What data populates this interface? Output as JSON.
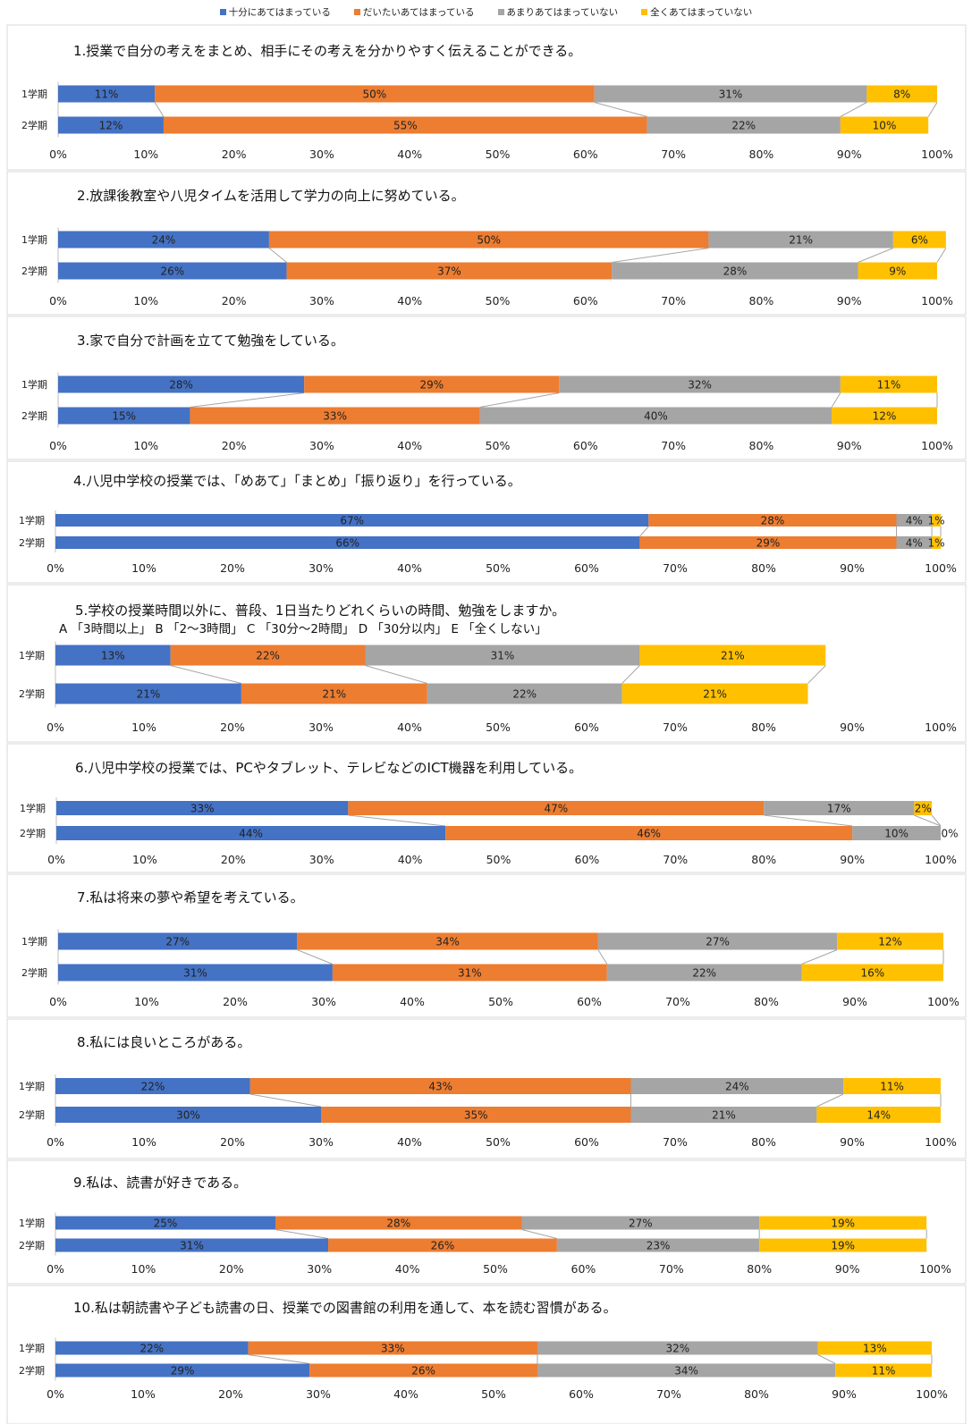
{
  "legend": [
    {
      "label": "十分にあてはまっている",
      "color": "#4472C4"
    },
    {
      "label": "だいたいあてはまっている",
      "color": "#ED7D31"
    },
    {
      "label": "あまりあてはまっていない",
      "color": "#A5A5A5"
    },
    {
      "label": "全くあてはまっていない",
      "color": "#FFC000"
    }
  ],
  "chart_data": [
    {
      "type": "bar",
      "orientation": "horizontal",
      "stacked": "percent",
      "title": "1.授業で自分の考えをまとめ、相手にその考えを分かりやすく伝えることができる。",
      "categories": [
        "1学期",
        "2学期"
      ],
      "series": [
        {
          "values": [
            11,
            12
          ],
          "labels": [
            "11%",
            "12%"
          ]
        },
        {
          "values": [
            50,
            55
          ],
          "labels": [
            "50%",
            "55%"
          ]
        },
        {
          "values": [
            31,
            22
          ],
          "labels": [
            "31%",
            "22%"
          ]
        },
        {
          "values": [
            8,
            10
          ],
          "labels": [
            "8%",
            "10%"
          ]
        }
      ],
      "xlim": [
        0,
        100
      ],
      "xticks": [
        "0%",
        "10%",
        "20%",
        "30%",
        "40%",
        "50%",
        "60%",
        "70%",
        "80%",
        "90%",
        "100%"
      ]
    },
    {
      "type": "bar",
      "orientation": "horizontal",
      "stacked": "percent",
      "title": "2.放課後教室や八児タイムを活用して学力の向上に努めている。",
      "categories": [
        "1学期",
        "2学期"
      ],
      "series": [
        {
          "values": [
            24,
            26
          ],
          "labels": [
            "24%",
            "26%"
          ]
        },
        {
          "values": [
            50,
            37
          ],
          "labels": [
            "50%",
            "37%"
          ]
        },
        {
          "values": [
            21,
            28
          ],
          "labels": [
            "21%",
            "28%"
          ]
        },
        {
          "values": [
            6,
            9
          ],
          "labels": [
            "6%",
            "9%"
          ]
        }
      ],
      "xlim": [
        0,
        100
      ],
      "xticks": [
        "0%",
        "10%",
        "20%",
        "30%",
        "40%",
        "50%",
        "60%",
        "70%",
        "80%",
        "90%",
        "100%"
      ]
    },
    {
      "type": "bar",
      "orientation": "horizontal",
      "stacked": "percent",
      "title": "3.家で自分で計画を立てて勉強をしている。",
      "categories": [
        "1学期",
        "2学期"
      ],
      "series": [
        {
          "values": [
            28,
            15
          ],
          "labels": [
            "28%",
            "15%"
          ]
        },
        {
          "values": [
            29,
            33
          ],
          "labels": [
            "29%",
            "33%"
          ]
        },
        {
          "values": [
            32,
            40
          ],
          "labels": [
            "32%",
            "40%"
          ]
        },
        {
          "values": [
            11,
            12
          ],
          "labels": [
            "11%",
            "12%"
          ]
        }
      ],
      "xlim": [
        0,
        100
      ],
      "xticks": [
        "0%",
        "10%",
        "20%",
        "30%",
        "40%",
        "50%",
        "60%",
        "70%",
        "80%",
        "90%",
        "100%"
      ]
    },
    {
      "type": "bar",
      "orientation": "horizontal",
      "stacked": "percent",
      "title": "4.八児中学校の授業では、「めあて」「まとめ」「振り返り」を行っている。",
      "categories": [
        "1学期",
        "2学期"
      ],
      "series": [
        {
          "values": [
            67,
            66
          ],
          "labels": [
            "67%",
            "66%"
          ]
        },
        {
          "values": [
            28,
            29
          ],
          "labels": [
            "28%",
            "29%"
          ]
        },
        {
          "values": [
            4,
            4
          ],
          "labels": [
            "4%",
            "4%"
          ]
        },
        {
          "values": [
            1,
            1
          ],
          "labels": [
            "1%",
            "1%"
          ]
        }
      ],
      "xlim": [
        0,
        100
      ],
      "xticks": [
        "0%",
        "10%",
        "20%",
        "30%",
        "40%",
        "50%",
        "60%",
        "70%",
        "80%",
        "90%",
        "100%"
      ]
    },
    {
      "type": "bar",
      "orientation": "horizontal",
      "stacked": "percent",
      "title": "5.学校の授業時間以外に、普段、1日当たりどれくらいの時間、勉強をしますか。",
      "subtitle": "A 「3時間以上」 B 「2～3時間」 C 「30分～2時間」 D 「30分以内」 E 「全くしない」",
      "categories": [
        "1学期",
        "2学期"
      ],
      "series": [
        {
          "values": [
            13,
            21
          ],
          "labels": [
            "13%",
            "21%"
          ]
        },
        {
          "values": [
            22,
            21
          ],
          "labels": [
            "22%",
            "21%"
          ]
        },
        {
          "values": [
            31,
            22
          ],
          "labels": [
            "31%",
            "22%"
          ]
        },
        {
          "values": [
            21,
            21
          ],
          "labels": [
            "21%",
            "21%"
          ]
        }
      ],
      "xlim": [
        0,
        100
      ],
      "xticks": [
        "0%",
        "10%",
        "20%",
        "30%",
        "40%",
        "50%",
        "60%",
        "70%",
        "80%",
        "90%",
        "100%"
      ]
    },
    {
      "type": "bar",
      "orientation": "horizontal",
      "stacked": "percent",
      "title": "6.八児中学校の授業では、PCやタブレット、テレビなどのICT機器を利用している。",
      "categories": [
        "1学期",
        "2学期"
      ],
      "series": [
        {
          "values": [
            33,
            44
          ],
          "labels": [
            "33%",
            "44%"
          ]
        },
        {
          "values": [
            47,
            46
          ],
          "labels": [
            "47%",
            "46%"
          ]
        },
        {
          "values": [
            17,
            10
          ],
          "labels": [
            "17%",
            "10%"
          ]
        },
        {
          "values": [
            2,
            0
          ],
          "labels": [
            "2%",
            "0%"
          ]
        }
      ],
      "xlim": [
        0,
        100
      ],
      "xticks": [
        "0%",
        "10%",
        "20%",
        "30%",
        "40%",
        "50%",
        "60%",
        "70%",
        "80%",
        "90%",
        "100%"
      ]
    },
    {
      "type": "bar",
      "orientation": "horizontal",
      "stacked": "percent",
      "title": "7.私は将来の夢や希望を考えている。",
      "categories": [
        "1学期",
        "2学期"
      ],
      "series": [
        {
          "values": [
            27,
            31
          ],
          "labels": [
            "27%",
            "31%"
          ]
        },
        {
          "values": [
            34,
            31
          ],
          "labels": [
            "34%",
            "31%"
          ]
        },
        {
          "values": [
            27,
            22
          ],
          "labels": [
            "27%",
            "22%"
          ]
        },
        {
          "values": [
            12,
            16
          ],
          "labels": [
            "12%",
            "16%"
          ]
        }
      ],
      "xlim": [
        0,
        100
      ],
      "xticks": [
        "0%",
        "10%",
        "20%",
        "30%",
        "40%",
        "50%",
        "60%",
        "70%",
        "80%",
        "90%",
        "100%"
      ]
    },
    {
      "type": "bar",
      "orientation": "horizontal",
      "stacked": "percent",
      "title": "8.私には良いところがある。",
      "categories": [
        "1学期",
        "2学期"
      ],
      "series": [
        {
          "values": [
            22,
            30
          ],
          "labels": [
            "22%",
            "30%"
          ]
        },
        {
          "values": [
            43,
            35
          ],
          "labels": [
            "43%",
            "35%"
          ]
        },
        {
          "values": [
            24,
            21
          ],
          "labels": [
            "24%",
            "21%"
          ]
        },
        {
          "values": [
            11,
            14
          ],
          "labels": [
            "11%",
            "14%"
          ]
        }
      ],
      "xlim": [
        0,
        100
      ],
      "xticks": [
        "0%",
        "10%",
        "20%",
        "30%",
        "40%",
        "50%",
        "60%",
        "70%",
        "80%",
        "90%",
        "100%"
      ]
    },
    {
      "type": "bar",
      "orientation": "horizontal",
      "stacked": "percent",
      "title": "9.私は、読書が好きである。",
      "categories": [
        "1学期",
        "2学期"
      ],
      "series": [
        {
          "values": [
            25,
            31
          ],
          "labels": [
            "25%",
            "31%"
          ]
        },
        {
          "values": [
            28,
            26
          ],
          "labels": [
            "28%",
            "26%"
          ]
        },
        {
          "values": [
            27,
            23
          ],
          "labels": [
            "27%",
            "23%"
          ]
        },
        {
          "values": [
            19,
            19
          ],
          "labels": [
            "19%",
            "19%"
          ]
        }
      ],
      "xlim": [
        0,
        100
      ],
      "xticks": [
        "0%",
        "10%",
        "20%",
        "30%",
        "40%",
        "50%",
        "60%",
        "70%",
        "80%",
        "90%",
        "100%"
      ]
    },
    {
      "type": "bar",
      "orientation": "horizontal",
      "stacked": "percent",
      "title": "10.私は朝読書や子ども読書の日、授業での図書館の利用を通して、本を読む習慣がある。",
      "categories": [
        "1学期",
        "2学期"
      ],
      "series": [
        {
          "values": [
            22,
            29
          ],
          "labels": [
            "22%",
            "29%"
          ]
        },
        {
          "values": [
            33,
            26
          ],
          "labels": [
            "33%",
            "26%"
          ]
        },
        {
          "values": [
            32,
            34
          ],
          "labels": [
            "32%",
            "34%"
          ]
        },
        {
          "values": [
            13,
            11
          ],
          "labels": [
            "13%",
            "11%"
          ]
        }
      ],
      "xlim": [
        0,
        100
      ],
      "xticks": [
        "0%",
        "10%",
        "20%",
        "30%",
        "40%",
        "50%",
        "60%",
        "70%",
        "80%",
        "90%",
        "100%"
      ]
    }
  ]
}
